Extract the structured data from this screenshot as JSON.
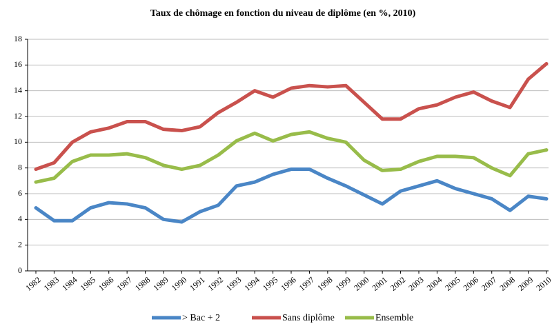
{
  "chart_data": {
    "type": "line",
    "title": "Taux de chômage en fonction du niveau de diplôme (en %, 2010)",
    "categories": [
      "1982",
      "1983",
      "1984",
      "1985",
      "1986",
      "1987",
      "1988",
      "1989",
      "1990",
      "1991",
      "1992",
      "1993",
      "1994",
      "1995",
      "1996",
      "1997",
      "1998",
      "1999",
      "2000",
      "2001",
      "2002",
      "2003",
      "2004",
      "2005",
      "2006",
      "2007",
      "2008",
      "2009",
      "2010"
    ],
    "series": [
      {
        "name": "> Bac + 2",
        "color": "#4a86c6",
        "values": [
          4.9,
          3.9,
          3.9,
          4.9,
          5.3,
          5.2,
          4.9,
          4.0,
          3.8,
          4.6,
          5.1,
          6.6,
          6.9,
          7.5,
          7.9,
          7.9,
          7.2,
          6.6,
          5.9,
          5.2,
          6.2,
          6.6,
          7.0,
          6.4,
          6.0,
          5.6,
          4.7,
          5.8,
          5.6
        ]
      },
      {
        "name": "Sans diplôme",
        "color": "#c9514d",
        "values": [
          7.9,
          8.4,
          10.0,
          10.8,
          11.1,
          11.6,
          11.6,
          11.0,
          10.9,
          11.2,
          12.3,
          13.1,
          14.0,
          13.5,
          14.2,
          14.4,
          14.3,
          14.4,
          13.1,
          11.8,
          11.8,
          12.6,
          12.9,
          13.5,
          13.9,
          13.2,
          12.7,
          14.9,
          16.1
        ]
      },
      {
        "name": "Ensemble",
        "color": "#98bc4a",
        "values": [
          6.9,
          7.2,
          8.5,
          9.0,
          9.0,
          9.1,
          8.8,
          8.2,
          7.9,
          8.2,
          9.0,
          10.1,
          10.7,
          10.1,
          10.6,
          10.8,
          10.3,
          10.0,
          8.6,
          7.8,
          7.9,
          8.5,
          8.9,
          8.9,
          8.8,
          8.0,
          7.4,
          9.1,
          9.4
        ]
      }
    ],
    "ylim": [
      0,
      18
    ],
    "yticks": [
      0,
      2,
      4,
      6,
      8,
      10,
      12,
      14,
      16,
      18
    ],
    "grid": true,
    "legend": "bottom"
  }
}
